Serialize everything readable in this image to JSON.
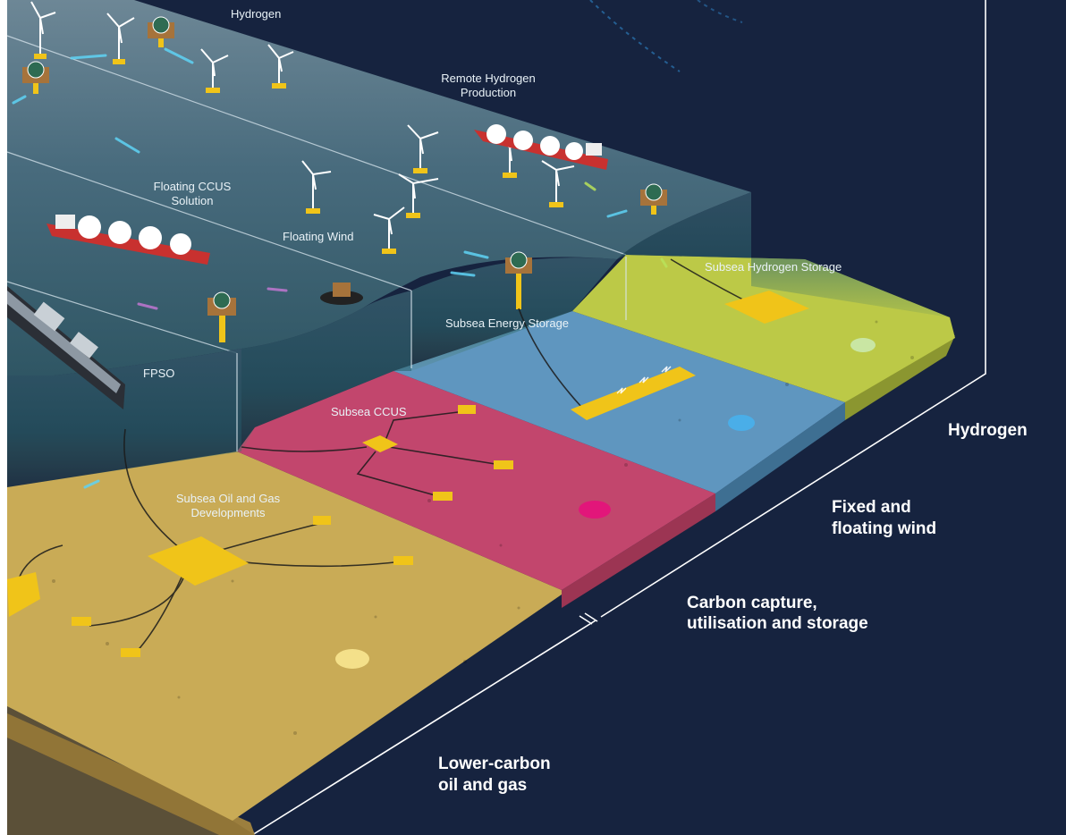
{
  "diagram": {
    "scene_labels": {
      "hydrogen_top": "Hydrogen",
      "remote_hydrogen_line1": "Remote Hydrogen",
      "remote_hydrogen_line2": "Production",
      "floating_ccus_line1": "Floating CCUS",
      "floating_ccus_line2": "Solution",
      "floating_wind": "Floating Wind",
      "subsea_hydrogen_storage": "Subsea Hydrogen Storage",
      "subsea_energy_storage": "Subsea Energy Storage",
      "fpso": "FPSO",
      "subsea_ccus": "Subsea CCUS",
      "subsea_oil_gas_line1": "Subsea Oil and Gas",
      "subsea_oil_gas_line2": "Developments"
    },
    "zone_labels": {
      "hydrogen": "Hydrogen",
      "wind_line1": "Fixed and",
      "wind_line2": "floating wind",
      "ccus_line1": "Carbon capture,",
      "ccus_line2": "utilisation and storage",
      "oil_gas_line1": "Lower-carbon",
      "oil_gas_line2": "oil and gas"
    },
    "colors": {
      "background": "#16233f",
      "hydrogen_zone": "#bcc947",
      "wind_zone": "#5f96bf",
      "ccus_zone": "#c2466d",
      "oil_gas_zone": "#c9ab56",
      "sea": "#496f83",
      "subsea_equipment": "#f0c419"
    },
    "markers": {
      "hydrogen": "#c9e6a3",
      "wind": "#4aaee8",
      "ccus": "#e2167a",
      "oil_gas": "#f4e08a"
    }
  }
}
